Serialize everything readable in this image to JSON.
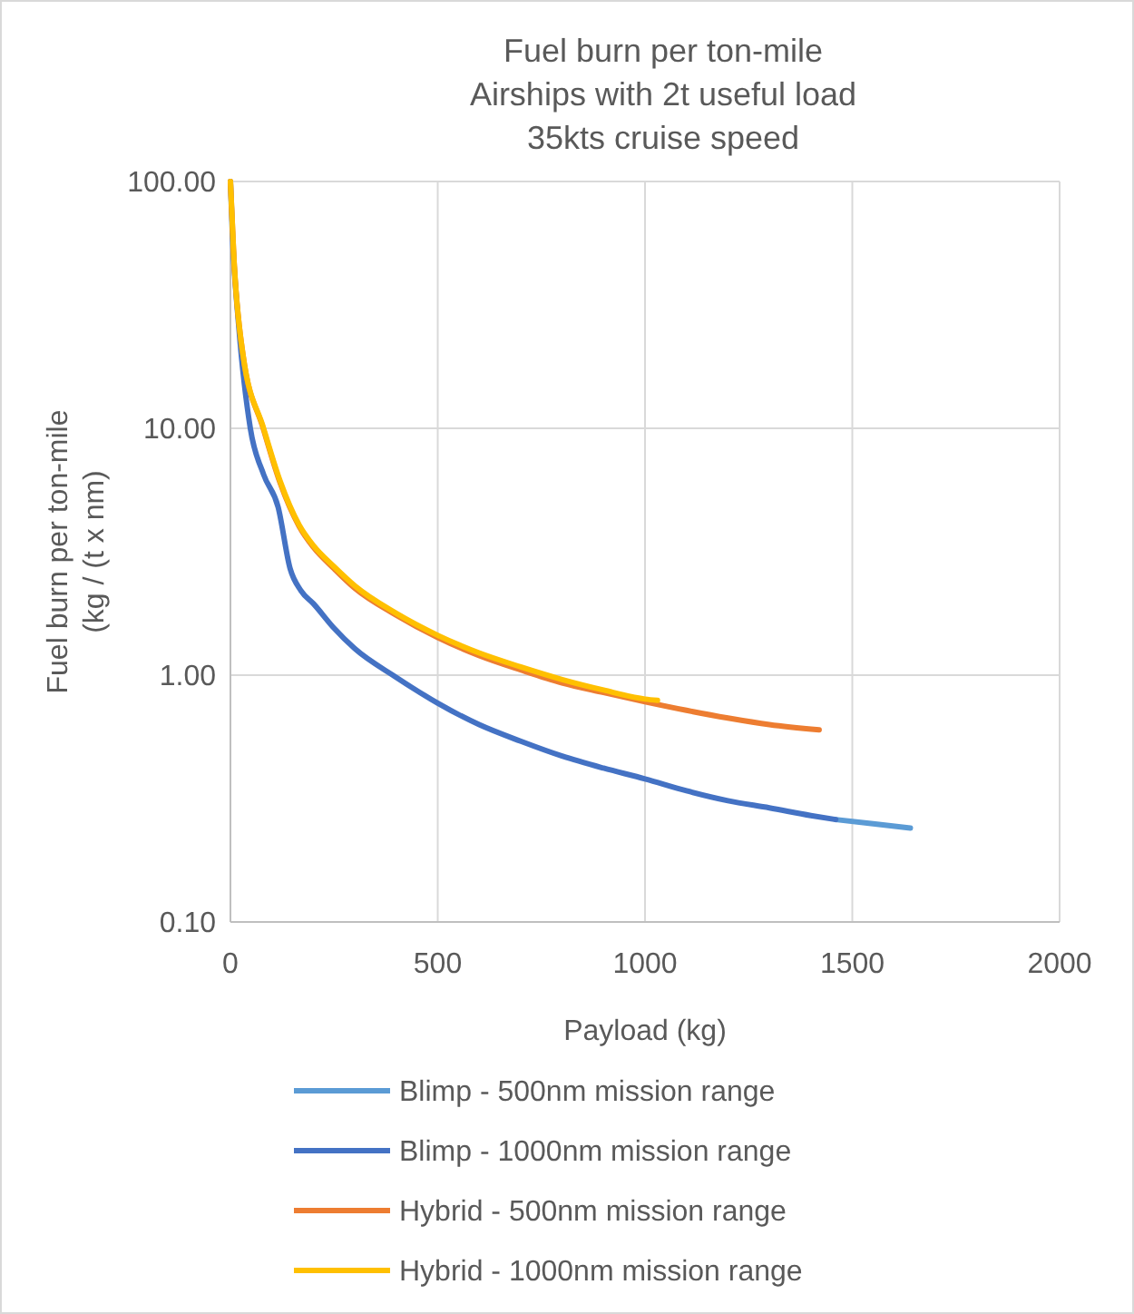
{
  "chart_data": {
    "type": "line",
    "title": "Fuel burn per ton-mile\nAirships with 2t useful load\n35kts cruise speed",
    "xlabel": "Payload (kg)",
    "ylabel": "Fuel burn per ton-mile\n(kg / (t x nm)",
    "log": "y",
    "grid": true,
    "legend": "bottom",
    "line_style": "solid",
    "marker": "none",
    "xlim": [
      0,
      2000
    ],
    "xticks": [
      0,
      500,
      1000,
      1500,
      2000
    ],
    "ylim": [
      0.1,
      100
    ],
    "yticks": [
      {
        "value": 0.1,
        "label": "0.10"
      },
      {
        "value": 1,
        "label": "1.00"
      },
      {
        "value": 10,
        "label": "10.00"
      },
      {
        "value": 100,
        "label": "100.00"
      }
    ],
    "series": [
      {
        "name": "Blimp - 500nm mission range",
        "color": "#5b9bd5",
        "x": [
          1460,
          1550,
          1640
        ],
        "values": [
          0.26,
          0.25,
          0.24
        ]
      },
      {
        "name": "Blimp - 1000nm mission range",
        "color": "#4472c4",
        "x": [
          0,
          5,
          20,
          48,
          80,
          115,
          144,
          170,
          200,
          250,
          300,
          400,
          500,
          600,
          700,
          800,
          900,
          1000,
          1100,
          1200,
          1300,
          1400,
          1460
        ],
        "values": [
          100,
          60,
          26,
          10,
          6.5,
          4.8,
          2.7,
          2.2,
          1.95,
          1.55,
          1.28,
          0.98,
          0.77,
          0.63,
          0.54,
          0.47,
          0.42,
          0.38,
          0.34,
          0.31,
          0.29,
          0.27,
          0.26
        ]
      },
      {
        "name": "Hybrid - 500nm mission range",
        "color": "#ed7d31",
        "x": [
          0,
          8,
          30,
          79,
          120,
          166,
          200,
          250,
          300,
          400,
          500,
          600,
          700,
          800,
          900,
          1000,
          1100,
          1200,
          1300,
          1420
        ],
        "values": [
          100,
          50,
          20,
          10,
          6,
          4,
          3.3,
          2.7,
          2.25,
          1.75,
          1.42,
          1.2,
          1.05,
          0.93,
          0.85,
          0.78,
          0.72,
          0.67,
          0.63,
          0.6
        ]
      },
      {
        "name": "Hybrid - 1000nm mission range",
        "color": "#ffc000",
        "x": [
          0,
          8,
          30,
          80,
          120,
          166,
          200,
          250,
          300,
          400,
          500,
          600,
          700,
          800,
          900,
          1000,
          1030
        ],
        "values": [
          100,
          50,
          20,
          10,
          6.1,
          4.05,
          3.35,
          2.75,
          2.3,
          1.78,
          1.45,
          1.23,
          1.08,
          0.96,
          0.87,
          0.8,
          0.79
        ]
      }
    ]
  }
}
